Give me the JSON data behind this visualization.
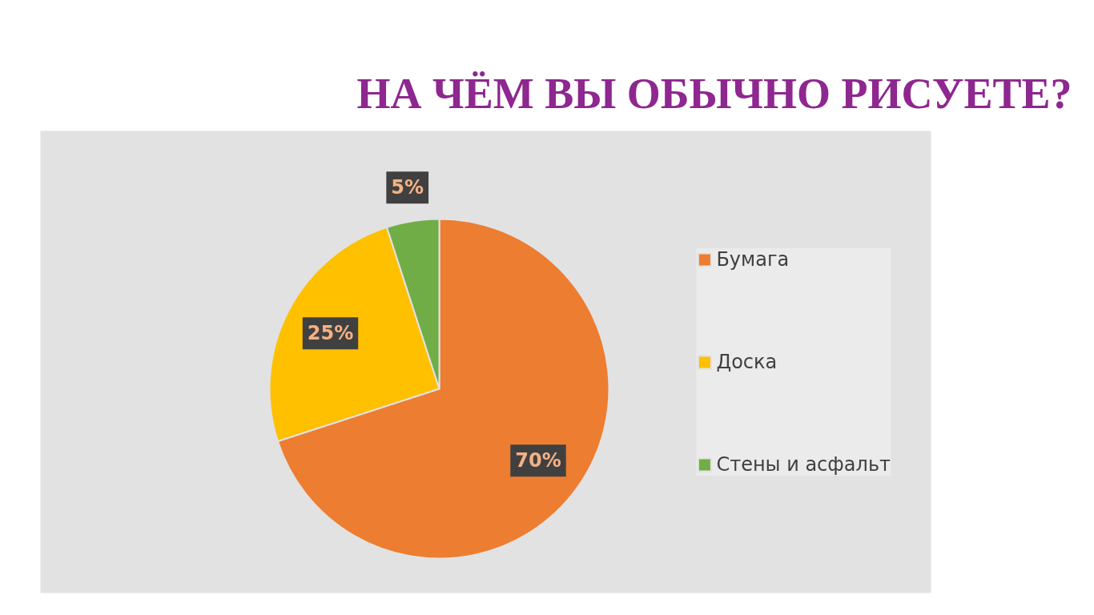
{
  "chart_data": {
    "type": "pie",
    "title": "НА ЧЁМ ВЫ ОБЫЧНО РИСУЕТЕ?",
    "categories": [
      "Бумага",
      "Доска",
      "Стены и асфальт"
    ],
    "values": [
      70,
      25,
      5
    ],
    "colors": [
      "#ed7d31",
      "#ffc000",
      "#70ad47"
    ],
    "value_labels": [
      "70%",
      "25%",
      "5%"
    ],
    "legend": "right"
  }
}
